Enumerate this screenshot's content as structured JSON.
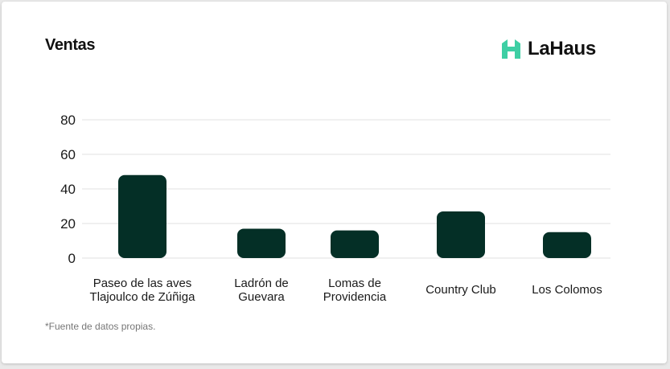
{
  "title": "Ventas",
  "brand": {
    "name": "LaHaus",
    "logo_icon": "house-logo-icon",
    "color": "#3ecfa4"
  },
  "footnote": "*Fuente de datos propias.",
  "chart_data": {
    "type": "bar",
    "title": "Ventas",
    "xlabel": "",
    "ylabel": "",
    "categories": [
      [
        "Paseo de las aves",
        "Tlajoulco de Zúñiga"
      ],
      [
        "Ladrón de",
        "Guevara"
      ],
      [
        "Lomas de",
        "Providencia"
      ],
      [
        "Country Club"
      ],
      [
        "Los Colomos"
      ]
    ],
    "values": [
      48,
      17,
      16,
      27,
      15
    ],
    "ylim": [
      0,
      80
    ],
    "yticks": [
      0,
      20,
      40,
      60,
      80
    ],
    "grid": true,
    "bar_color": "#042f26",
    "gridline_color": "#e2e2e2"
  }
}
